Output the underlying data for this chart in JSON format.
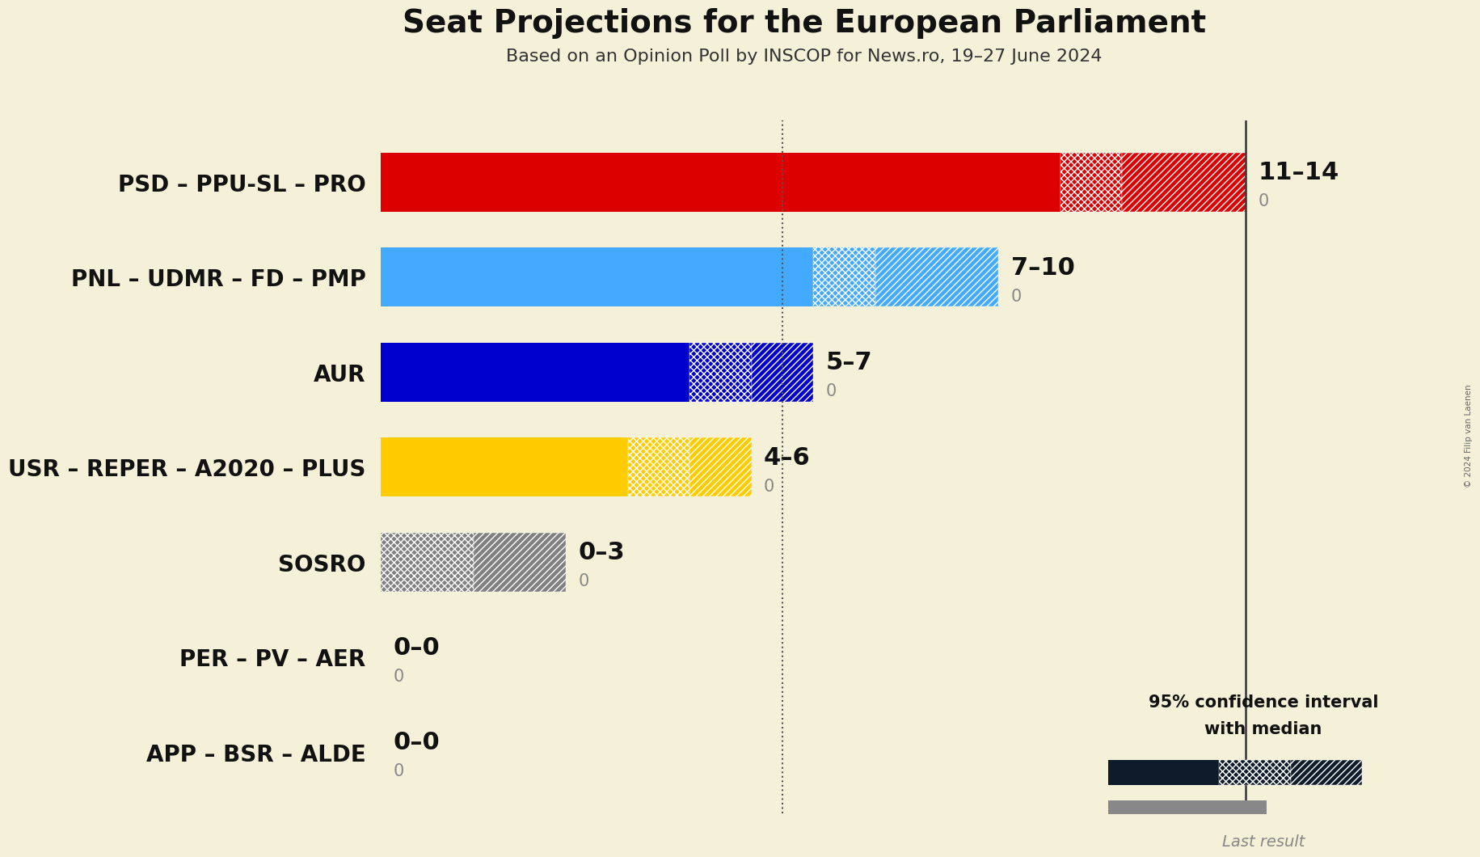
{
  "title": "Seat Projections for the European Parliament",
  "subtitle": "Based on an Opinion Poll by INSCOP for News.ro, 19–27 June 2024",
  "copyright": "© 2024 Filip van Laenen",
  "background_color": "#f5f0d8",
  "parties": [
    "PSD – PPU-SL – PRO",
    "PNL – UDMR – FD – PMP",
    "AUR",
    "USR – REPER – A2020 – PLUS",
    "SOSRO",
    "PER – PV – AER",
    "APP – BSR – ALDE"
  ],
  "colors": [
    "#dd0000",
    "#44aaff",
    "#0000cc",
    "#ffcc00",
    "#808080",
    "#808080",
    "#808080"
  ],
  "low": [
    11,
    7,
    5,
    4,
    0,
    0,
    0
  ],
  "median": [
    12,
    8,
    6,
    5,
    1.5,
    0,
    0
  ],
  "high": [
    14,
    10,
    7,
    6,
    3,
    0,
    0
  ],
  "last_result": [
    0,
    0,
    0,
    0,
    0,
    0,
    0
  ],
  "labels": [
    "11–14",
    "7–10",
    "5–7",
    "4–6",
    "0–3",
    "0–0",
    "0–0"
  ],
  "xlim": [
    0,
    16
  ],
  "dotted_line_x": 6.5,
  "vertical_line_x": 14,
  "title_fontsize": 28,
  "subtitle_fontsize": 16,
  "label_fontsize": 22,
  "zero_label_fontsize": 15,
  "ytick_fontsize": 20,
  "bar_height": 0.62,
  "legend_text_1": "95% confidence interval",
  "legend_text_2": "with median",
  "legend_text_3": "Last result"
}
